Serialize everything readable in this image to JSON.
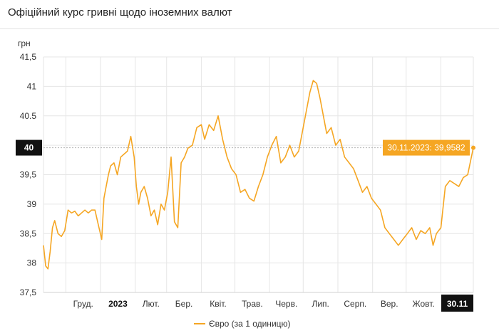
{
  "header": {
    "title": "Офіційний курс гривні щодо іноземних валют"
  },
  "colors": {
    "series": "#f5a623",
    "grid": "#e6e6e6",
    "badge_bg": "#111111",
    "badge_text": "#ffffff",
    "reference_line": "#b5b5b5"
  },
  "chart_data": {
    "type": "line",
    "ylabel": "грн",
    "ylim": [
      37.5,
      41.5
    ],
    "yticks": [
      37.5,
      38,
      38.5,
      39,
      39.5,
      40,
      40.5,
      41,
      41.5
    ],
    "ytick_labels": [
      "37,5",
      "38",
      "38,5",
      "39",
      "39,5",
      "40",
      "40.5",
      "41",
      "41,5"
    ],
    "current_y_label": "40",
    "x_start": "2022-11-11",
    "x_end": "2023-11-30",
    "xticks": [
      {
        "label": "Груд.",
        "bold": false
      },
      {
        "label": "2023",
        "bold": true
      },
      {
        "label": "Лют.",
        "bold": false
      },
      {
        "label": "Бер.",
        "bold": false
      },
      {
        "label": "Квіт.",
        "bold": false
      },
      {
        "label": "Трав.",
        "bold": false
      },
      {
        "label": "Черв.",
        "bold": false
      },
      {
        "label": "Лип.",
        "bold": false
      },
      {
        "label": "Серп.",
        "bold": false
      },
      {
        "label": "Вер.",
        "bold": false
      },
      {
        "label": "Жовт.",
        "bold": false
      }
    ],
    "current_x_label": "30.11",
    "tooltip": "30.11.2023: 39,9582",
    "grid": true,
    "legend_position": "bottom",
    "series": [
      {
        "name": "Євро (за 1 одиницю)",
        "x": [
          "2022-11-11",
          "2022-11-13",
          "2022-11-15",
          "2022-11-17",
          "2022-11-19",
          "2022-11-21",
          "2022-11-24",
          "2022-11-27",
          "2022-11-30",
          "2022-12-03",
          "2022-12-06",
          "2022-12-09",
          "2022-12-12",
          "2022-12-15",
          "2022-12-18",
          "2022-12-21",
          "2022-12-24",
          "2022-12-27",
          "2022-12-30",
          "2023-01-02",
          "2023-01-04",
          "2023-01-06",
          "2023-01-08",
          "2023-01-10",
          "2023-01-13",
          "2023-01-16",
          "2023-01-19",
          "2023-01-22",
          "2023-01-25",
          "2023-01-28",
          "2023-01-31",
          "2023-02-02",
          "2023-02-04",
          "2023-02-06",
          "2023-02-09",
          "2023-02-12",
          "2023-02-15",
          "2023-02-18",
          "2023-02-21",
          "2023-02-24",
          "2023-02-27",
          "2023-03-02",
          "2023-03-05",
          "2023-03-08",
          "2023-03-11",
          "2023-03-14",
          "2023-03-17",
          "2023-03-20",
          "2023-03-24",
          "2023-03-28",
          "2023-04-01",
          "2023-04-04",
          "2023-04-08",
          "2023-04-12",
          "2023-04-16",
          "2023-04-20",
          "2023-04-24",
          "2023-04-28",
          "2023-05-02",
          "2023-05-06",
          "2023-05-10",
          "2023-05-14",
          "2023-05-18",
          "2023-05-22",
          "2023-05-26",
          "2023-05-30",
          "2023-06-03",
          "2023-06-07",
          "2023-06-11",
          "2023-06-15",
          "2023-06-19",
          "2023-06-23",
          "2023-06-27",
          "2023-07-01",
          "2023-07-04",
          "2023-07-07",
          "2023-07-10",
          "2023-07-13",
          "2023-07-16",
          "2023-07-19",
          "2023-07-22",
          "2023-07-26",
          "2023-07-30",
          "2023-08-03",
          "2023-08-07",
          "2023-08-11",
          "2023-08-15",
          "2023-08-19",
          "2023-08-23",
          "2023-08-27",
          "2023-08-31",
          "2023-09-04",
          "2023-09-08",
          "2023-09-12",
          "2023-09-16",
          "2023-09-20",
          "2023-09-24",
          "2023-09-28",
          "2023-10-02",
          "2023-10-06",
          "2023-10-10",
          "2023-10-14",
          "2023-10-18",
          "2023-10-22",
          "2023-10-25",
          "2023-10-28",
          "2023-11-01",
          "2023-11-05",
          "2023-11-09",
          "2023-11-13",
          "2023-11-17",
          "2023-11-21",
          "2023-11-25",
          "2023-11-30"
        ],
        "values": [
          38.3,
          37.95,
          37.9,
          38.2,
          38.6,
          38.72,
          38.5,
          38.45,
          38.55,
          38.9,
          38.85,
          38.88,
          38.8,
          38.85,
          38.9,
          38.85,
          38.9,
          38.9,
          38.65,
          38.4,
          39.1,
          39.3,
          39.5,
          39.65,
          39.7,
          39.5,
          39.8,
          39.85,
          39.9,
          40.15,
          39.8,
          39.3,
          39.0,
          39.2,
          39.3,
          39.1,
          38.8,
          38.9,
          38.65,
          39.0,
          38.9,
          39.2,
          39.8,
          38.7,
          38.6,
          39.7,
          39.8,
          39.95,
          40.0,
          40.3,
          40.35,
          40.1,
          40.35,
          40.25,
          40.5,
          40.1,
          39.8,
          39.6,
          39.5,
          39.2,
          39.25,
          39.1,
          39.05,
          39.3,
          39.5,
          39.8,
          40.0,
          40.15,
          39.7,
          39.8,
          40.0,
          39.8,
          39.9,
          40.3,
          40.6,
          40.9,
          41.1,
          41.05,
          40.8,
          40.5,
          40.2,
          40.3,
          40.0,
          40.1,
          39.8,
          39.7,
          39.6,
          39.4,
          39.2,
          39.3,
          39.1,
          39.0,
          38.9,
          38.6,
          38.5,
          38.4,
          38.3,
          38.4,
          38.5,
          38.6,
          38.4,
          38.55,
          38.5,
          38.6,
          38.3,
          38.5,
          38.6,
          39.3,
          39.4,
          39.35,
          39.3,
          39.45,
          39.5,
          39.9582
        ]
      }
    ]
  }
}
